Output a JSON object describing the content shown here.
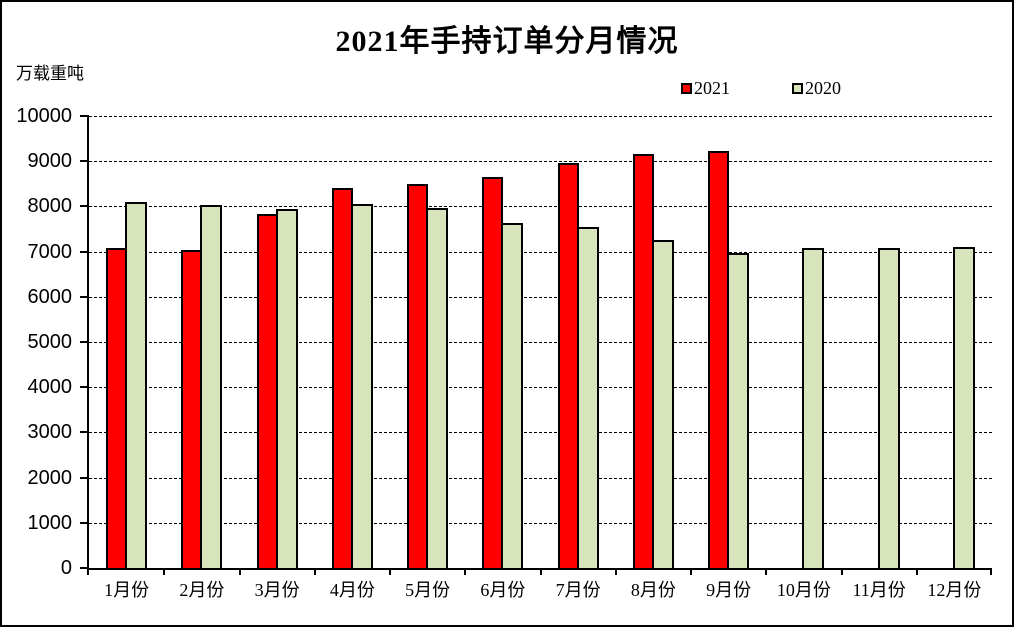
{
  "title": "2021年手持订单分月情况",
  "y_axis": {
    "unit_label": "万载重吨"
  },
  "legend": {
    "items": [
      {
        "label": "2021",
        "color": "#FF0000"
      },
      {
        "label": "2020",
        "color": "#D8E4BC"
      }
    ]
  },
  "chart_data": {
    "type": "bar",
    "title": "2021年手持订单分月情况",
    "ylabel": "万载重吨",
    "categories": [
      "1月份",
      "2月份",
      "3月份",
      "4月份",
      "5月份",
      "6月份",
      "7月份",
      "8月份",
      "9月份",
      "10月份",
      "11月份",
      "12月份"
    ],
    "series": [
      {
        "name": "2021",
        "color": "#FF0000",
        "values": [
          7090,
          7040,
          7840,
          8400,
          8500,
          8650,
          8960,
          9150,
          9230,
          null,
          null,
          null
        ]
      },
      {
        "name": "2020",
        "color": "#D8E4BC",
        "values": [
          8100,
          8040,
          7950,
          8050,
          7960,
          7630,
          7540,
          7260,
          6960,
          7080,
          7090,
          7110
        ]
      }
    ],
    "ylim": [
      0,
      10000
    ],
    "yticks": [
      0,
      1000,
      2000,
      3000,
      4000,
      5000,
      6000,
      7000,
      8000,
      9000,
      10000
    ],
    "grid": "horizontal-dashed",
    "legend_position": "top-right"
  }
}
